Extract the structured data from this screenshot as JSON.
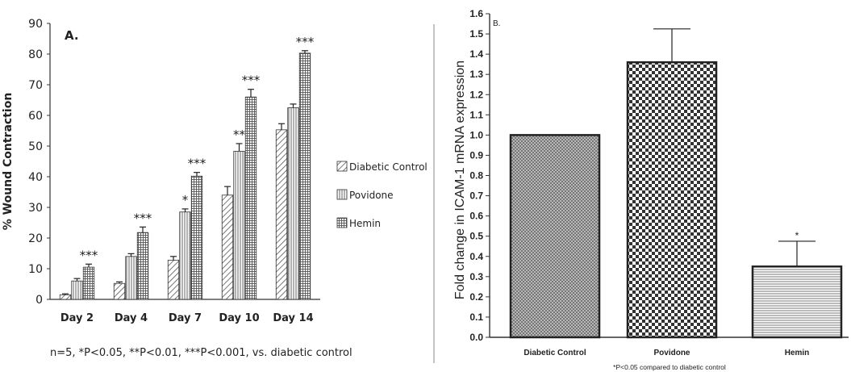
{
  "figure": {
    "caption_a": "n=5, *P<0.05, **P<0.01, ***P<0.001, vs. diabetic control",
    "caption_b": "*P<0.05 compared to diabetic control"
  },
  "colors": {
    "axis": "#333333",
    "text": "#222222",
    "separator": "#888888"
  },
  "chart_data": [
    {
      "type": "bar",
      "panel_label": "A.",
      "title": "",
      "xlabel": "",
      "ylabel": "% Wound Contraction",
      "ylim": [
        0,
        90
      ],
      "yticks": [
        0,
        10,
        20,
        30,
        40,
        50,
        60,
        70,
        80,
        90
      ],
      "grid": false,
      "legend_position": "right",
      "categories": [
        "Day 2",
        "Day 4",
        "Day 7",
        "Day 10",
        "Day 14"
      ],
      "series": [
        {
          "name": "Diabetic Control",
          "pattern": "diagonal-hatch",
          "values": [
            1.5,
            5.2,
            12.8,
            34.0,
            55.3
          ],
          "errors": [
            0.3,
            0.5,
            1.2,
            2.8,
            2.0
          ],
          "annotations": [
            "",
            "",
            "",
            "",
            ""
          ]
        },
        {
          "name": "Povidone",
          "pattern": "vertical-lines",
          "values": [
            6.0,
            14.0,
            28.5,
            48.3,
            62.5
          ],
          "errors": [
            0.8,
            0.9,
            1.0,
            2.5,
            1.2
          ],
          "annotations": [
            "",
            "",
            "*",
            "**",
            ""
          ]
        },
        {
          "name": "Hemin",
          "pattern": "grid",
          "values": [
            10.5,
            21.8,
            40.2,
            66.0,
            80.3
          ],
          "errors": [
            1.0,
            1.8,
            1.2,
            2.5,
            0.8
          ],
          "annotations": [
            "***",
            "***",
            "***",
            "***",
            "***"
          ]
        }
      ]
    },
    {
      "type": "bar",
      "panel_label": "B.",
      "title": "",
      "xlabel": "",
      "ylabel": "Fold change in ICAM-1 mRNA expression",
      "ylim": [
        0,
        1.6
      ],
      "yticks": [
        "0.0",
        "0.1",
        "0.2",
        "0.3",
        "0.4",
        "0.5",
        "0.6",
        "0.7",
        "0.8",
        "0.9",
        "1.0",
        "1.1",
        "1.2",
        "1.3",
        "1.4",
        "1.5",
        "1.6"
      ],
      "grid": false,
      "categories": [
        "Diabetic Control",
        "Povidone",
        "Hemin"
      ],
      "values": [
        1.0,
        1.36,
        0.35
      ],
      "errors": [
        0,
        0.165,
        0.125
      ],
      "annotations": [
        "",
        "",
        "*"
      ],
      "patterns": [
        "fine-checker",
        "coarse-checker",
        "horizontal-lines"
      ]
    }
  ]
}
